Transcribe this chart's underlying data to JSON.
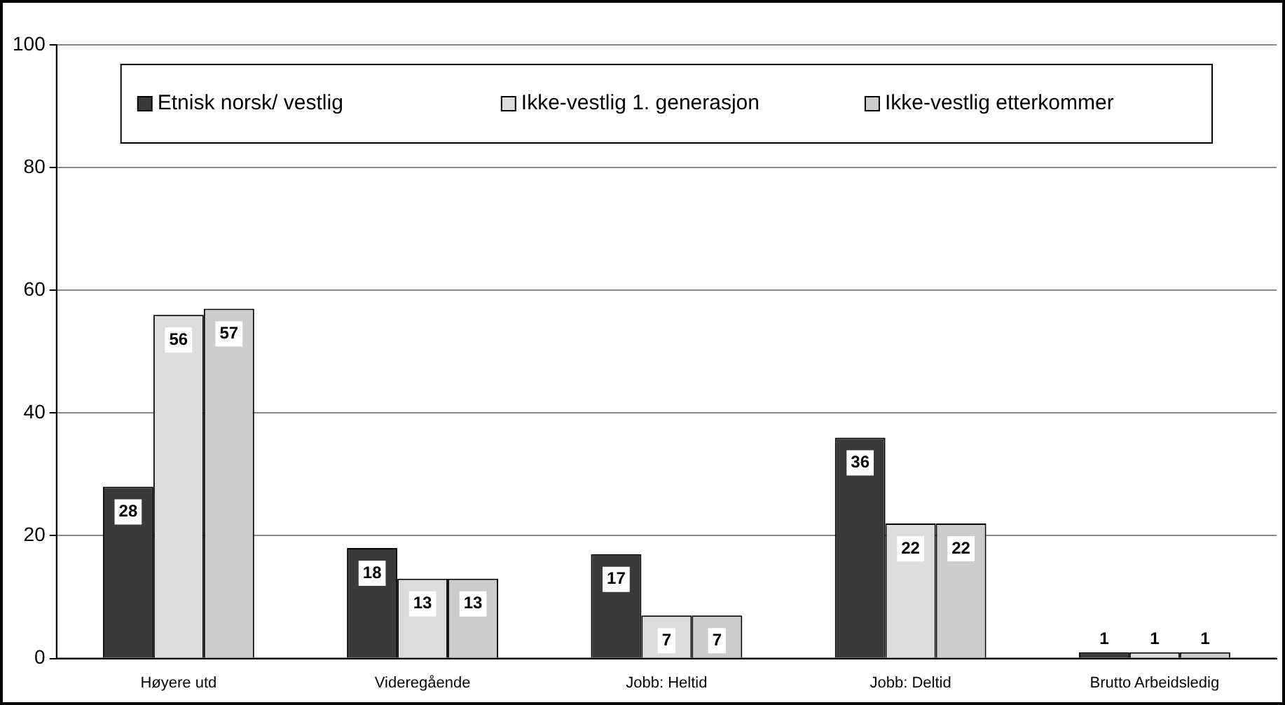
{
  "chart_data": {
    "type": "bar",
    "categories": [
      "Høyere utd",
      "Videregående",
      "Jobb: Heltid",
      "Jobb: Deltid",
      "Brutto Arbeidsledig"
    ],
    "series": [
      {
        "name": "Etnisk norsk/ vestlig",
        "color": "#3a3a3a",
        "values": [
          28,
          18,
          17,
          36,
          1
        ]
      },
      {
        "name": "Ikke-vestlig 1. generasjon",
        "color": "#dcdcdc",
        "values": [
          56,
          13,
          7,
          22,
          1
        ]
      },
      {
        "name": "Ikke-vestlig etterkommer",
        "color": "#cccccc",
        "values": [
          57,
          13,
          7,
          22,
          1
        ]
      }
    ],
    "ylim": [
      0,
      100
    ],
    "yticks": [
      0,
      20,
      40,
      60,
      80,
      100
    ],
    "grid": "y",
    "legend": "top",
    "data_labels": true
  }
}
